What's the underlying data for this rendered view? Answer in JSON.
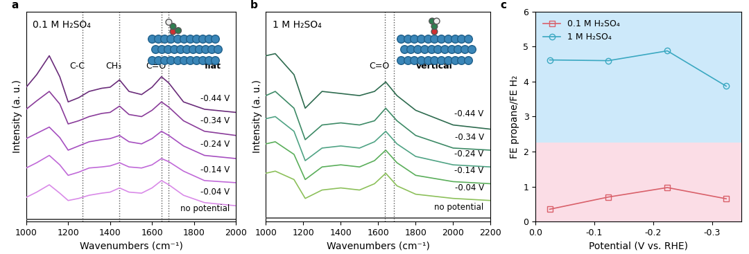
{
  "chart_data": [
    {
      "type": "line",
      "title": "a",
      "subtitle": "0.1 M H₂SO₄",
      "inset_label": "flat",
      "x_label": "Wavenumbers (cm⁻¹)",
      "y_label": "Intensity (a. u.)",
      "xlim": [
        1000,
        2000
      ],
      "xticks": [
        1000,
        1200,
        1400,
        1600,
        1800,
        2000
      ],
      "ylim": [
        0,
        10
      ],
      "yticks": [],
      "tick_labels": "x",
      "vlines": [
        1270,
        1445,
        1645,
        1680
      ],
      "annotations": [
        {
          "text": "C-C",
          "x": 1270
        },
        {
          "text": "CH₃",
          "x": 1445
        },
        {
          "text": "C=O",
          "x": 1645
        }
      ],
      "x": [
        1000,
        1050,
        1110,
        1160,
        1200,
        1250,
        1300,
        1360,
        1400,
        1445,
        1490,
        1550,
        1600,
        1645,
        1680,
        1750,
        1850,
        2000
      ],
      "series": [
        {
          "name": "-0.44 V",
          "color": "#6a2c7a",
          "values": [
            6.4,
            7.0,
            7.9,
            6.9,
            5.7,
            5.9,
            6.2,
            6.35,
            6.4,
            6.75,
            6.2,
            6.05,
            6.4,
            6.9,
            6.6,
            5.7,
            5.35,
            5.2
          ]
        },
        {
          "name": "-0.34 V",
          "color": "#8a3c9a",
          "values": [
            5.35,
            5.75,
            6.2,
            5.6,
            4.65,
            4.8,
            5.0,
            5.15,
            5.2,
            5.5,
            5.1,
            5.0,
            5.3,
            5.7,
            5.45,
            4.8,
            4.3,
            4.1
          ]
        },
        {
          "name": "-0.24 V",
          "color": "#a64fc0",
          "values": [
            3.95,
            4.2,
            4.5,
            4.0,
            3.4,
            3.6,
            3.8,
            3.9,
            3.95,
            4.1,
            3.8,
            3.7,
            3.95,
            4.3,
            4.1,
            3.6,
            3.15,
            3.0
          ]
        },
        {
          "name": "-0.14 V",
          "color": "#c069d8",
          "values": [
            2.55,
            2.8,
            3.15,
            2.7,
            2.2,
            2.35,
            2.55,
            2.6,
            2.65,
            2.8,
            2.6,
            2.55,
            2.7,
            3.0,
            2.85,
            2.4,
            1.95,
            1.85
          ]
        },
        {
          "name": "-0.04 V",
          "color": "#d98ae8",
          "values": [
            1.15,
            1.4,
            1.75,
            1.35,
            1.0,
            1.1,
            1.25,
            1.35,
            1.4,
            1.6,
            1.4,
            1.35,
            1.6,
            1.95,
            1.75,
            1.25,
            0.9,
            0.75
          ]
        },
        {
          "name": "no potential",
          "color": "#444444",
          "values": [
            0.1,
            0.1,
            0.1,
            0.1,
            0.1,
            0.1,
            0.1,
            0.1,
            0.1,
            0.1,
            0.1,
            0.1,
            0.1,
            0.1,
            0.1,
            0.1,
            0.1,
            0.1
          ]
        }
      ]
    },
    {
      "type": "line",
      "title": "b",
      "subtitle": "1 M H₂SO₄",
      "inset_label": "vertical",
      "x_label": "Wavenumbers (cm⁻¹)",
      "y_label": "Intensity (a. u.)",
      "xlim": [
        1000,
        2200
      ],
      "xticks": [
        1000,
        1200,
        1400,
        1600,
        1800,
        2000,
        2200
      ],
      "ylim": [
        0,
        10
      ],
      "yticks": [],
      "tick_labels": "x",
      "vlines": [
        1635,
        1685
      ],
      "annotations": [
        {
          "text": "C=O",
          "x": 1635
        }
      ],
      "x": [
        1000,
        1050,
        1150,
        1210,
        1300,
        1400,
        1500,
        1580,
        1640,
        1700,
        1800,
        2000,
        2200
      ],
      "series": [
        {
          "name": "-0.44 V",
          "color": "#2e6b4f",
          "values": [
            7.9,
            8.0,
            7.0,
            5.4,
            6.2,
            6.1,
            6.0,
            6.2,
            6.65,
            6.0,
            5.3,
            4.6,
            4.4
          ]
        },
        {
          "name": "-0.34 V",
          "color": "#3d8a66",
          "values": [
            6.0,
            6.2,
            5.4,
            3.9,
            4.6,
            4.7,
            4.6,
            4.8,
            5.4,
            4.8,
            4.1,
            3.5,
            3.4
          ]
        },
        {
          "name": "-0.24 V",
          "color": "#4fa384",
          "values": [
            4.9,
            5.0,
            4.3,
            2.9,
            3.5,
            3.6,
            3.5,
            3.8,
            4.3,
            3.7,
            3.1,
            2.7,
            2.6
          ]
        },
        {
          "name": "-0.14 V",
          "color": "#5aae5a",
          "values": [
            3.7,
            3.8,
            3.2,
            2.0,
            2.6,
            2.7,
            2.6,
            2.9,
            3.4,
            2.8,
            2.2,
            1.9,
            1.8
          ]
        },
        {
          "name": "-0.04 V",
          "color": "#8cc05a",
          "values": [
            2.3,
            2.4,
            2.0,
            1.1,
            1.5,
            1.6,
            1.5,
            1.8,
            2.3,
            1.7,
            1.3,
            1.1,
            1.0
          ]
        },
        {
          "name": "no potential",
          "color": "#444444",
          "values": [
            0.15,
            0.15,
            0.15,
            0.15,
            0.15,
            0.15,
            0.15,
            0.15,
            0.15,
            0.15,
            0.15,
            0.15,
            0.15
          ]
        }
      ]
    },
    {
      "type": "line",
      "title": "c",
      "x_label": "Potential (V vs. RHE)",
      "y_label": "FE propane/FE H₂",
      "xlim": [
        0.0,
        -0.35
      ],
      "xticks": [
        {
          "value": 0.0,
          "label": "0.0"
        },
        {
          "value": -0.1,
          "label": "-0.1"
        },
        {
          "value": -0.2,
          "label": "-0.2"
        },
        {
          "value": -0.3,
          "label": "-0.3"
        }
      ],
      "ylim": [
        0,
        6
      ],
      "yticks": [
        0,
        1,
        2,
        3,
        4,
        5,
        6
      ],
      "legend": "upper left",
      "regions": [
        {
          "from": 0,
          "to": 2.25,
          "color": "#fbdde6"
        },
        {
          "from": 2.25,
          "to": 6,
          "color": "#cde9fa"
        }
      ],
      "x": [
        -0.024,
        -0.124,
        -0.224,
        -0.324
      ],
      "series": [
        {
          "name": "0.1 M H₂SO₄",
          "color": "#d9606a",
          "marker": "square",
          "line_style": "solid",
          "values": [
            0.35,
            0.7,
            0.97,
            0.65
          ]
        },
        {
          "name": "1 M H₂SO₄",
          "color": "#3aa8c1",
          "marker": "circle",
          "line_style": "solid",
          "values": [
            4.62,
            4.6,
            4.88,
            3.87
          ]
        }
      ]
    }
  ]
}
